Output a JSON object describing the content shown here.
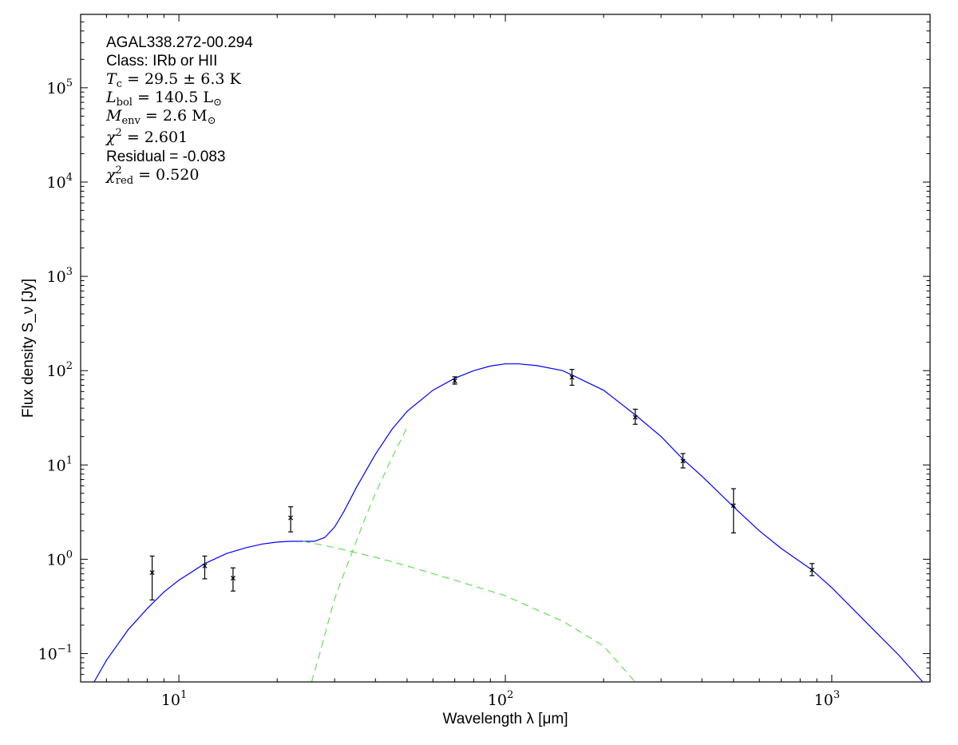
{
  "chart_data": {
    "type": "scatter",
    "xscale": "log",
    "yscale": "log",
    "xlim": [
      5,
      2000
    ],
    "ylim": [
      0.05,
      600000
    ],
    "xlabel": "Wavelength λ [μm]",
    "ylabel": "Flux density S_ν [Jy]",
    "x_ticks": [
      {
        "value": 10,
        "base": "10",
        "exp": "1"
      },
      {
        "value": 100,
        "base": "10",
        "exp": "2"
      },
      {
        "value": 1000,
        "base": "10",
        "exp": "3"
      }
    ],
    "y_ticks": [
      {
        "value": 0.1,
        "base": "10",
        "exp": "−1"
      },
      {
        "value": 1,
        "base": "10",
        "exp": "0"
      },
      {
        "value": 10,
        "base": "10",
        "exp": "1"
      },
      {
        "value": 100,
        "base": "10",
        "exp": "2"
      },
      {
        "value": 1000,
        "base": "10",
        "exp": "3"
      },
      {
        "value": 10000,
        "base": "10",
        "exp": "4"
      },
      {
        "value": 100000,
        "base": "10",
        "exp": "5"
      }
    ],
    "annotations": {
      "source": "AGAL338.272-00.294",
      "class_line": "Class: IRb or HII",
      "tc": {
        "sym": "T",
        "sub": "c",
        "rest": " = 29.5 ± 6.3 K"
      },
      "lbol": {
        "sym": "L",
        "sub": "bol",
        "rest": " = 140.5 L",
        "sub2": "⊙"
      },
      "menv": {
        "sym": "M",
        "sub": "env",
        "rest": " = 2.6 M",
        "sub2": "⊙"
      },
      "chi2": {
        "sym": "χ",
        "sup": "2",
        "rest": " = 2.601"
      },
      "residual": "Residual = -0.083",
      "chi2red": {
        "sym": "χ",
        "sup": "2",
        "sub": "red",
        "rest": " = 0.520"
      }
    },
    "points": [
      {
        "x": 8.28,
        "y": 0.72,
        "ylo": 0.37,
        "yhi": 1.08
      },
      {
        "x": 12.0,
        "y": 0.85,
        "ylo": 0.62,
        "yhi": 1.08
      },
      {
        "x": 14.65,
        "y": 0.63,
        "ylo": 0.46,
        "yhi": 0.81
      },
      {
        "x": 22.0,
        "y": 2.75,
        "ylo": 1.95,
        "yhi": 3.6
      },
      {
        "x": 70.0,
        "y": 78.0,
        "ylo": 72.0,
        "yhi": 86.0
      },
      {
        "x": 160.0,
        "y": 85.0,
        "ylo": 70.0,
        "yhi": 103.0
      },
      {
        "x": 250.0,
        "y": 32.0,
        "ylo": 27.0,
        "yhi": 39.0
      },
      {
        "x": 350.0,
        "y": 11.0,
        "ylo": 9.3,
        "yhi": 13.2
      },
      {
        "x": 500.0,
        "y": 3.7,
        "ylo": 1.9,
        "yhi": 5.6
      },
      {
        "x": 870.0,
        "y": 0.77,
        "ylo": 0.67,
        "yhi": 0.9
      }
    ],
    "series": [
      {
        "role": "total",
        "color": "#0000ff",
        "dash": "solid",
        "points": [
          [
            5.5,
            0.05
          ],
          [
            6,
            0.085
          ],
          [
            7,
            0.18
          ],
          [
            8,
            0.3
          ],
          [
            9,
            0.45
          ],
          [
            10,
            0.6
          ],
          [
            12,
            0.9
          ],
          [
            14,
            1.15
          ],
          [
            16,
            1.32
          ],
          [
            18,
            1.45
          ],
          [
            20,
            1.52
          ],
          [
            22,
            1.55
          ],
          [
            24,
            1.55
          ],
          [
            26,
            1.55
          ],
          [
            28,
            1.7
          ],
          [
            30,
            2.2
          ],
          [
            32,
            3.2
          ],
          [
            35,
            5.8
          ],
          [
            40,
            13
          ],
          [
            45,
            24
          ],
          [
            50,
            37
          ],
          [
            60,
            62
          ],
          [
            70,
            83
          ],
          [
            80,
            100
          ],
          [
            90,
            112
          ],
          [
            100,
            118
          ],
          [
            110,
            118
          ],
          [
            125,
            113
          ],
          [
            150,
            100
          ],
          [
            200,
            62
          ],
          [
            250,
            34
          ],
          [
            300,
            20
          ],
          [
            350,
            11.5
          ],
          [
            400,
            7.6
          ],
          [
            500,
            3.6
          ],
          [
            600,
            2.0
          ],
          [
            700,
            1.3
          ],
          [
            870,
            0.77
          ],
          [
            1000,
            0.5
          ],
          [
            1300,
            0.2
          ],
          [
            1600,
            0.097
          ],
          [
            1900,
            0.05
          ]
        ]
      },
      {
        "role": "hot-component",
        "color": "#66dd55",
        "dash": "dashed",
        "points": [
          [
            24,
            1.55
          ],
          [
            30,
            1.33
          ],
          [
            40,
            1.05
          ],
          [
            50,
            0.85
          ],
          [
            70,
            0.6
          ],
          [
            100,
            0.41
          ],
          [
            150,
            0.22
          ],
          [
            200,
            0.12
          ],
          [
            250,
            0.05
          ]
        ]
      },
      {
        "role": "cold-component",
        "color": "#66dd55",
        "dash": "dashed",
        "points": [
          [
            25.5,
            0.05
          ],
          [
            27,
            0.1
          ],
          [
            28.5,
            0.2
          ],
          [
            30,
            0.38
          ],
          [
            32,
            0.7
          ],
          [
            34,
            1.2
          ],
          [
            37,
            2.6
          ],
          [
            40,
            5
          ],
          [
            45,
            12
          ],
          [
            50,
            25
          ]
        ]
      }
    ]
  }
}
